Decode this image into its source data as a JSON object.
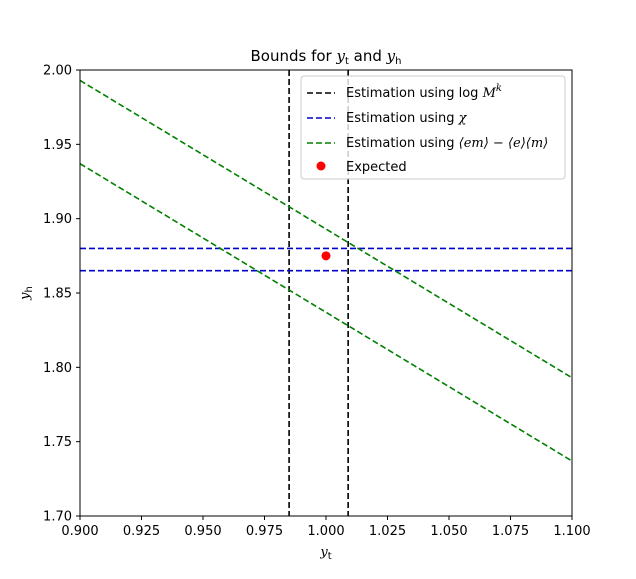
{
  "chart_data": {
    "type": "line",
    "title": {
      "prefix": "Bounds for ",
      "var1": "y",
      "sub1": "t",
      "mid": " and ",
      "var2": "y",
      "sub2": "h"
    },
    "xlabel": {
      "var": "y",
      "sub": "t"
    },
    "ylabel": {
      "var": "y",
      "sub": "h"
    },
    "xlim": [
      0.9,
      1.1
    ],
    "ylim": [
      1.7,
      2.0
    ],
    "x_ticks": [
      "0.900",
      "0.925",
      "0.950",
      "0.975",
      "1.000",
      "1.025",
      "1.050",
      "1.075",
      "1.100"
    ],
    "y_ticks": [
      "1.70",
      "1.75",
      "1.80",
      "1.85",
      "1.90",
      "1.95",
      "2.00"
    ],
    "grid": false,
    "legend_placement": "top-right",
    "series": [
      {
        "name": "Estimation using log M^k",
        "legend": {
          "text": "Estimation using log",
          "var": "M",
          "sup": "k"
        },
        "kind": "vline",
        "color": "#000000",
        "style": "dashed",
        "x": [
          0.985,
          1.009
        ]
      },
      {
        "name": "Estimation using χ",
        "legend": {
          "text": "Estimation using",
          "var": "χ"
        },
        "kind": "hline",
        "color": "#0000cc",
        "style": "dashed",
        "y": [
          1.88,
          1.865
        ]
      },
      {
        "name": "Estimation using ⟨em⟩ − ⟨e⟩⟨m⟩",
        "legend": {
          "text": "Estimation using",
          "expr": "⟨em⟩ − ⟨e⟩⟨m⟩"
        },
        "kind": "lines",
        "color": "#008000",
        "style": "dashed",
        "lines": [
          {
            "x": [
              0.9,
              1.1
            ],
            "y": [
              1.993,
              1.793
            ]
          },
          {
            "x": [
              0.9,
              1.1
            ],
            "y": [
              1.937,
              1.737
            ]
          }
        ]
      },
      {
        "name": "Expected",
        "legend": {
          "text": "Expected"
        },
        "kind": "point",
        "color": "#ff0000",
        "x": [
          1.0
        ],
        "y": [
          1.875
        ]
      }
    ]
  }
}
